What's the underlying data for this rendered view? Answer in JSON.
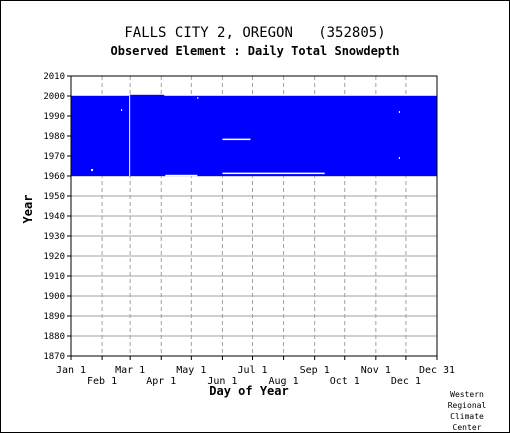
{
  "title": "FALLS CITY 2, OREGON   (352805)",
  "subtitle": "Observed Element : Daily Total Snowdepth",
  "credit": [
    "Western",
    "Regional",
    "Climate",
    "Center"
  ],
  "chart_data": {
    "type": "heatmap",
    "xlabel": "Day of Year",
    "ylabel": "Year",
    "ylim": [
      1870,
      2010
    ],
    "xlim": [
      1,
      366
    ],
    "grid": true,
    "bar_color": "#0000ff",
    "gap_color": "#ffffff",
    "y_ticks": [
      1870,
      1880,
      1890,
      1900,
      1910,
      1920,
      1930,
      1940,
      1950,
      1960,
      1970,
      1980,
      1990,
      2000,
      2010
    ],
    "x_ticks_upper": [
      {
        "label": "Jan 1",
        "day": 1
      },
      {
        "label": "Mar 1",
        "day": 60
      },
      {
        "label": "May 1",
        "day": 121
      },
      {
        "label": "Jul 1",
        "day": 182
      },
      {
        "label": "Sep 1",
        "day": 244
      },
      {
        "label": "Nov 1",
        "day": 305
      },
      {
        "label": "Dec 31",
        "day": 366
      }
    ],
    "x_ticks_lower": [
      {
        "label": "Feb 1",
        "day": 32
      },
      {
        "label": "Apr 1",
        "day": 91
      },
      {
        "label": "Jun 1",
        "day": 152
      },
      {
        "label": "Aug 1",
        "day": 213
      },
      {
        "label": "Oct 1",
        "day": 274
      },
      {
        "label": "Dec 1",
        "day": 335
      }
    ],
    "coverage": [
      {
        "day_start": 1,
        "day_end": 366,
        "year_start": 1960,
        "year_end": 2000
      },
      {
        "day_start": 60,
        "day_end": 94,
        "year_start": 2000,
        "year_end": 2000.6
      }
    ],
    "gaps": [
      {
        "day_start": 59,
        "day_end": 60,
        "year_start": 1960,
        "year_end": 2000
      },
      {
        "day_start": 95,
        "day_end": 127,
        "year_start": 1960,
        "year_end": 1960.6
      },
      {
        "day_start": 152,
        "day_end": 254,
        "year_start": 1961,
        "year_end": 1961.7
      },
      {
        "day_start": 152,
        "day_end": 180,
        "year_start": 1978,
        "year_end": 1978.7
      },
      {
        "day_start": 21,
        "day_end": 23,
        "year_start": 1962.5,
        "year_end": 1963.5
      },
      {
        "day_start": 51,
        "day_end": 52,
        "year_start": 1992.5,
        "year_end": 1993.5
      },
      {
        "day_start": 328,
        "day_end": 329,
        "year_start": 1991.5,
        "year_end": 1992.5
      },
      {
        "day_start": 328,
        "day_end": 329,
        "year_start": 1968.5,
        "year_end": 1969.5
      },
      {
        "day_start": 127,
        "day_end": 128,
        "year_start": 1998.5,
        "year_end": 1999.5
      }
    ]
  }
}
